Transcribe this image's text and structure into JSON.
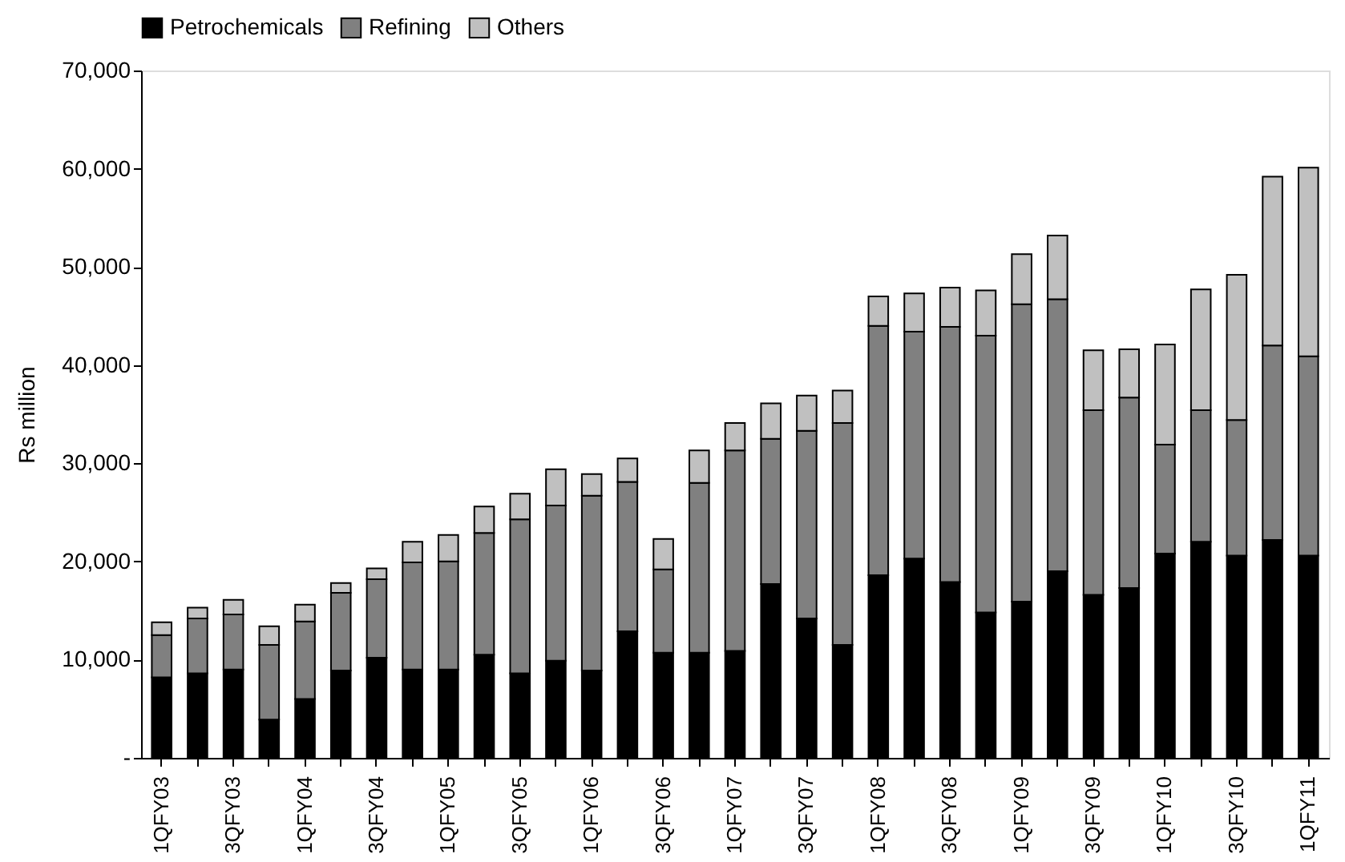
{
  "chart_data": {
    "type": "bar",
    "stacked": true,
    "ylabel": "Rs million",
    "legend": "top",
    "categories": [
      "1QFY03",
      null,
      "3QFY03",
      null,
      "1QFY04",
      null,
      "3QFY04",
      null,
      "1QFY05",
      null,
      "3QFY05",
      null,
      "1QFY06",
      null,
      "3QFY06",
      null,
      "1QFY07",
      null,
      "3QFY07",
      null,
      "1QFY08",
      null,
      "3QFY08",
      null,
      "1QFY09",
      null,
      "3QFY09",
      null,
      "1QFY10",
      null,
      "3QFY10",
      null,
      "1QFY11"
    ],
    "series": [
      {
        "name": "Petrochemicals",
        "color": "#000000",
        "values": [
          8200,
          8600,
          9000,
          3900,
          6000,
          8900,
          10200,
          9000,
          9000,
          10500,
          8600,
          9900,
          8900,
          12900,
          10700,
          10700,
          10900,
          17700,
          14200,
          11500,
          18600,
          20300,
          17900,
          14800,
          15900,
          19000,
          16600,
          17300,
          20800,
          22000,
          20600,
          22200,
          20600
        ]
      },
      {
        "name": "Refining",
        "color": "#808080",
        "values": [
          4300,
          5600,
          5600,
          7600,
          7900,
          7900,
          8000,
          10900,
          11000,
          12400,
          15700,
          15800,
          17800,
          15200,
          8500,
          17300,
          20400,
          14800,
          19100,
          22600,
          25400,
          23100,
          26000,
          28200,
          30300,
          27700,
          18800,
          19400,
          11100,
          13400,
          13800,
          19800,
          20300
        ]
      },
      {
        "name": "Others",
        "color": "#c0c0c0",
        "values": [
          1300,
          1100,
          1500,
          1900,
          1700,
          1000,
          1100,
          2100,
          2700,
          2700,
          2600,
          3700,
          2200,
          2400,
          3100,
          3300,
          2800,
          3600,
          3600,
          3300,
          3000,
          3900,
          4000,
          4600,
          5100,
          6500,
          6100,
          4900,
          10200,
          12300,
          14800,
          17200,
          19200
        ]
      }
    ],
    "ylim": [
      0,
      70000
    ],
    "yticks": [
      {
        "value": 0,
        "label": "-"
      },
      {
        "value": 10000,
        "label": "10,000"
      },
      {
        "value": 20000,
        "label": "20,000"
      },
      {
        "value": 30000,
        "label": "30,000"
      },
      {
        "value": 40000,
        "label": "40,000"
      },
      {
        "value": 50000,
        "label": "50,000"
      },
      {
        "value": 60000,
        "label": "60,000"
      },
      {
        "value": 70000,
        "label": "70,000"
      }
    ],
    "grid": false
  }
}
